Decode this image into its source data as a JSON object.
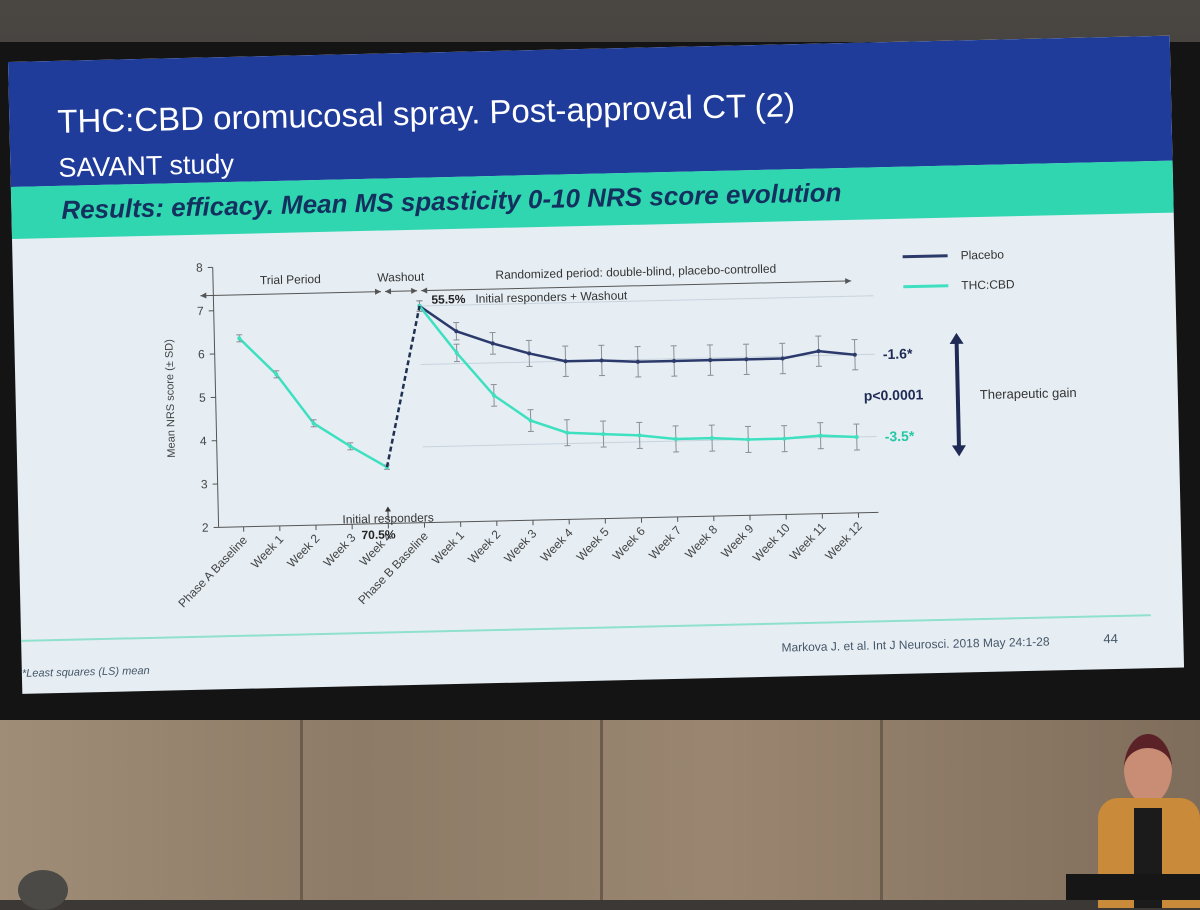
{
  "slide": {
    "title_line1": "THC:CBD oromucosal spray. Post-approval CT (2)",
    "title_line2": "SAVANT study",
    "subtitle": "Results: efficacy.  Mean MS spasticity 0-10 NRS score evolution",
    "footnote": "*Least squares (LS) mean",
    "citation": "Markova J. et al. Int J Neurosci. 2018 May 24:1-28",
    "page_number": "44",
    "colors": {
      "title_bar": "#1f3c9b",
      "subtitle_bar": "#2fd6b0",
      "placebo": "#2b3a6b",
      "thc_cbd": "#3ee0c0"
    }
  },
  "chart_data": {
    "type": "line",
    "ylabel": "Mean NRS score (± SD)",
    "ylim": [
      2,
      8
    ],
    "yticks": [
      "2",
      "3",
      "4",
      "5",
      "6",
      "7",
      "8"
    ],
    "categories": [
      "Phase A Baseline",
      "Week 1",
      "Week 2",
      "Week 3",
      "Week 4",
      "Phase B Baseline",
      "Week 1",
      "Week 2",
      "Week 3",
      "Week 4",
      "Week 5",
      "Week 6",
      "Week 7",
      "Week 8",
      "Week 9",
      "Week 10",
      "Week 11",
      "Week 12"
    ],
    "series": [
      {
        "name": "Placebo",
        "color": "#2b3a6b",
        "values": [
          null,
          null,
          null,
          null,
          null,
          7.0,
          6.4,
          6.1,
          5.85,
          5.65,
          5.65,
          5.6,
          5.6,
          5.6,
          5.6,
          5.6,
          5.75,
          5.65
        ],
        "errors": [
          null,
          null,
          null,
          null,
          null,
          0.12,
          0.2,
          0.25,
          0.3,
          0.35,
          0.35,
          0.35,
          0.35,
          0.35,
          0.35,
          0.35,
          0.35,
          0.35
        ]
      },
      {
        "name": "THC:CBD",
        "color": "#3ee0c0",
        "values": [
          6.35,
          5.5,
          4.35,
          3.8,
          3.3,
          7.0,
          5.9,
          4.9,
          4.3,
          4.0,
          3.95,
          3.9,
          3.8,
          3.8,
          3.75,
          3.75,
          3.8,
          3.75
        ],
        "errors": [
          0.08,
          0.08,
          0.08,
          0.08,
          0.05,
          0.12,
          0.2,
          0.25,
          0.25,
          0.3,
          0.3,
          0.3,
          0.3,
          0.3,
          0.3,
          0.3,
          0.3,
          0.3
        ]
      }
    ],
    "periods": [
      {
        "label": "Trial Period",
        "from": 0,
        "to": 4
      },
      {
        "label": "Washout",
        "from": 4,
        "to": 5
      },
      {
        "label": "Randomized period: double-blind, placebo-controlled",
        "from": 5,
        "to": 17
      }
    ],
    "annotations": {
      "initial_responders_label": "Initial responders",
      "initial_responders_pct": "70.5%",
      "washout_pct": "55.5%",
      "washout_label": "Initial responders + Washout",
      "placebo_change": "-1.6*",
      "thc_change": "-3.5*",
      "p_value": "p<0.0001",
      "gain_label": "Therapeutic gain"
    },
    "legend": {
      "position": "top-right",
      "items": [
        "Placebo",
        "THC:CBD"
      ]
    }
  }
}
